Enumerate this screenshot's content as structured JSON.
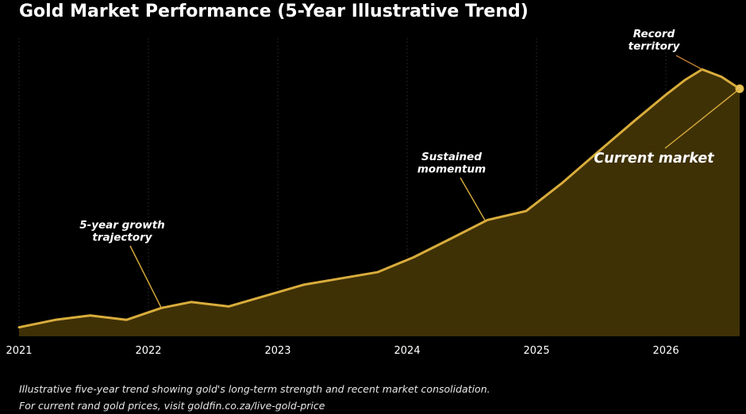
{
  "chart_data": {
    "type": "area",
    "title": "Gold Market Performance (5-Year Illustrative Trend)",
    "xlabel": "",
    "ylabel": "",
    "x_ticks": [
      "2021",
      "2022",
      "2023",
      "2024",
      "2025",
      "2026"
    ],
    "xlim": [
      2021.0,
      2026.57
    ],
    "ylim": [
      0,
      100
    ],
    "grid": "vertical dotted lines at year ticks",
    "legend": "none",
    "series": [
      {
        "x": [
          2021.0,
          2021.28,
          2021.55,
          2021.83,
          2022.1,
          2022.33,
          2022.62,
          2022.9,
          2023.2,
          2023.5,
          2023.77,
          2024.05,
          2024.35,
          2024.62,
          2024.92,
          2025.2,
          2025.48,
          2025.75,
          2026.0,
          2026.15,
          2026.28,
          2026.43,
          2026.57
        ],
        "y": [
          3,
          5.5,
          7,
          5.5,
          9.5,
          11.5,
          10,
          13.5,
          17.3,
          19.5,
          21.5,
          26.5,
          33,
          39,
          42,
          51.5,
          62,
          72,
          81,
          86,
          89.5,
          87,
          83
        ],
        "color": "#d9ad3c"
      }
    ],
    "annotations": [
      {
        "text": [
          "5-year growth",
          "trajectory"
        ],
        "x": 2022.1,
        "y": 9.5
      },
      {
        "text": [
          "Sustained",
          "momentum"
        ],
        "x": 2024.6,
        "y": 39
      },
      {
        "text": [
          "Record",
          "territory"
        ],
        "x": 2026.28,
        "y": 89.5
      },
      {
        "text": [
          "Current market"
        ],
        "x": 2026.57,
        "y": 83
      }
    ]
  },
  "captions": {
    "line1": "Illustrative five-year trend showing gold's long-term strength and recent market consolidation.",
    "line2": "For current rand gold prices, visit goldfin.co.za/live-gold-price"
  },
  "colors": {
    "background": "#000000",
    "line": "#d9ad3c",
    "fill": "#3f3106",
    "grid": "#3a3a3a",
    "text": "#ffffff"
  }
}
